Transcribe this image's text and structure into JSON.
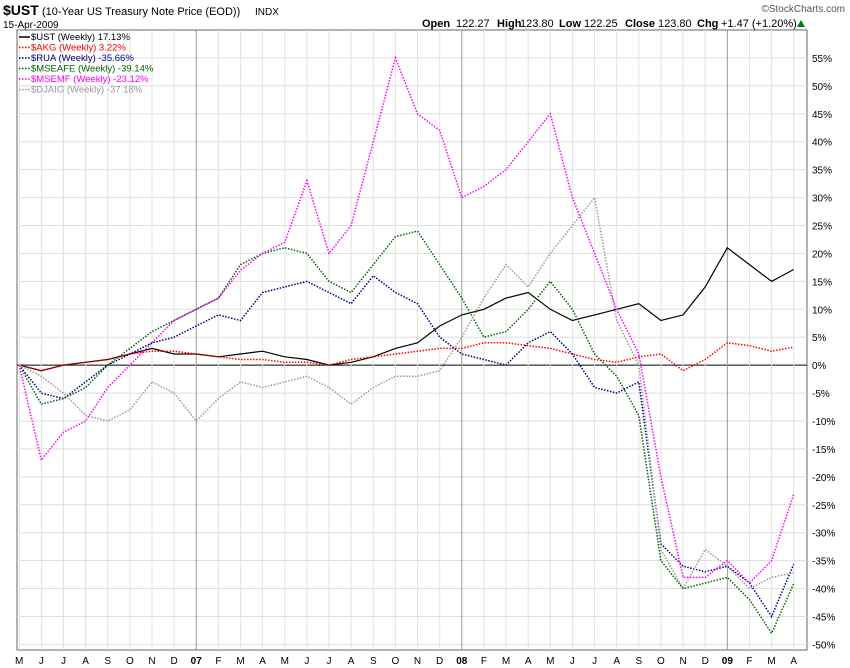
{
  "header": {
    "symbol": "$UST",
    "description": "(10-Year US Treasury Note Price (EOD))",
    "exchange": "INDX",
    "date": "15-Apr-2009",
    "watermark": "©StockCharts.com",
    "quote": {
      "open_label": "Open",
      "open": "122.27",
      "high_label": "High",
      "high": "123.80",
      "low_label": "Low",
      "low": "122.25",
      "close_label": "Close",
      "close": "123.80",
      "chg_label": "Chg",
      "chg": "+1.47 (+1.20%)"
    },
    "colors": {
      "up_arrow": "#008000"
    }
  },
  "chart_data": {
    "type": "line",
    "title": "$UST (10-Year US Treasury Note Price (EOD))",
    "xlabel": "",
    "ylabel": "",
    "ylim": [
      -51,
      60
    ],
    "yticks": [
      55,
      50,
      45,
      40,
      35,
      30,
      25,
      20,
      15,
      10,
      5,
      0,
      -5,
      -10,
      -15,
      -20,
      -25,
      -30,
      -35,
      -40,
      -45,
      -50
    ],
    "ytick_labels": [
      "55%",
      "50%",
      "45%",
      "40%",
      "35%",
      "30%",
      "25%",
      "20%",
      "15%",
      "10%",
      "5%",
      "0%",
      "-5%",
      "-10%",
      "-15%",
      "-20%",
      "-25%",
      "-30%",
      "-35%",
      "-40%",
      "-45%",
      "-50%"
    ],
    "x_labels": [
      "M",
      "J",
      "J",
      "A",
      "S",
      "O",
      "N",
      "D",
      "07",
      "F",
      "M",
      "A",
      "M",
      "J",
      "J",
      "A",
      "S",
      "O",
      "N",
      "D",
      "08",
      "F",
      "M",
      "A",
      "M",
      "J",
      "J",
      "A",
      "S",
      "O",
      "N",
      "D",
      "09",
      "F",
      "M",
      "A"
    ],
    "x_month_index": [
      0,
      1,
      2,
      3,
      4,
      5,
      6,
      7,
      8,
      9,
      10,
      11,
      12,
      13,
      14,
      15,
      16,
      17,
      18,
      19,
      20,
      21,
      22,
      23,
      24,
      25,
      26,
      27,
      28,
      29,
      30,
      31,
      32,
      33,
      34,
      35
    ],
    "x_range": [
      -0.1,
      35.6
    ],
    "grid": true,
    "legend_position": "top-left",
    "series": [
      {
        "name": "$UST (Weekly) 17.13%",
        "color": "#000000",
        "style": "solid",
        "values": [
          [
            0,
            0
          ],
          [
            1,
            -1
          ],
          [
            2,
            0
          ],
          [
            3,
            0.5
          ],
          [
            4,
            1
          ],
          [
            5,
            2
          ],
          [
            6,
            3
          ],
          [
            7,
            2
          ],
          [
            8,
            2
          ],
          [
            9,
            1.5
          ],
          [
            10,
            2
          ],
          [
            11,
            2.5
          ],
          [
            12,
            1.5
          ],
          [
            13,
            1
          ],
          [
            14,
            0
          ],
          [
            15,
            0.5
          ],
          [
            16,
            1.5
          ],
          [
            17,
            3
          ],
          [
            18,
            4
          ],
          [
            19,
            7
          ],
          [
            20,
            9
          ],
          [
            21,
            10
          ],
          [
            22,
            12
          ],
          [
            23,
            13
          ],
          [
            24,
            10
          ],
          [
            25,
            8
          ],
          [
            26,
            9
          ],
          [
            27,
            10
          ],
          [
            28,
            11
          ],
          [
            29,
            8
          ],
          [
            30,
            9
          ],
          [
            31,
            14
          ],
          [
            32,
            21
          ],
          [
            33,
            18
          ],
          [
            34,
            15
          ],
          [
            35,
            17.13
          ]
        ]
      },
      {
        "name": "$AKG (Weekly) 3.22%",
        "color": "#ff0000",
        "style": "dotted",
        "values": [
          [
            0,
            0
          ],
          [
            1,
            -1
          ],
          [
            2,
            0
          ],
          [
            3,
            0.5
          ],
          [
            4,
            1
          ],
          [
            5,
            2
          ],
          [
            6,
            2.5
          ],
          [
            7,
            2.5
          ],
          [
            8,
            2
          ],
          [
            9,
            1.5
          ],
          [
            10,
            1
          ],
          [
            11,
            1
          ],
          [
            12,
            0.5
          ],
          [
            13,
            0.5
          ],
          [
            14,
            0
          ],
          [
            15,
            1
          ],
          [
            16,
            1.5
          ],
          [
            17,
            2
          ],
          [
            18,
            2.5
          ],
          [
            19,
            3
          ],
          [
            20,
            3
          ],
          [
            21,
            4
          ],
          [
            22,
            4
          ],
          [
            23,
            3.5
          ],
          [
            24,
            3
          ],
          [
            25,
            2
          ],
          [
            26,
            1
          ],
          [
            27,
            0.5
          ],
          [
            28,
            1.5
          ],
          [
            29,
            2
          ],
          [
            30,
            -1
          ],
          [
            31,
            1
          ],
          [
            32,
            4
          ],
          [
            33,
            3.5
          ],
          [
            34,
            2.5
          ],
          [
            35,
            3.22
          ]
        ]
      },
      {
        "name": "$RUA (Weekly) -35.66%",
        "color": "#000080",
        "style": "dotted",
        "values": [
          [
            0,
            0
          ],
          [
            1,
            -5
          ],
          [
            2,
            -6
          ],
          [
            3,
            -3
          ],
          [
            4,
            0
          ],
          [
            5,
            2
          ],
          [
            6,
            4
          ],
          [
            7,
            5
          ],
          [
            8,
            7
          ],
          [
            9,
            9
          ],
          [
            10,
            8
          ],
          [
            11,
            13
          ],
          [
            12,
            14
          ],
          [
            13,
            15
          ],
          [
            14,
            13
          ],
          [
            15,
            11
          ],
          [
            16,
            16
          ],
          [
            17,
            13
          ],
          [
            18,
            11
          ],
          [
            19,
            5
          ],
          [
            20,
            2
          ],
          [
            21,
            1
          ],
          [
            22,
            0
          ],
          [
            23,
            4
          ],
          [
            24,
            6
          ],
          [
            25,
            2
          ],
          [
            26,
            -4
          ],
          [
            27,
            -5
          ],
          [
            28,
            -3
          ],
          [
            29,
            -32
          ],
          [
            30,
            -36
          ],
          [
            31,
            -37
          ],
          [
            32,
            -36
          ],
          [
            33,
            -39
          ],
          [
            34,
            -45
          ],
          [
            35,
            -35.66
          ]
        ]
      },
      {
        "name": "$MSEAFE (Weekly) -39.14%",
        "color": "#006400",
        "style": "dotted",
        "values": [
          [
            0,
            0
          ],
          [
            1,
            -7
          ],
          [
            2,
            -6
          ],
          [
            3,
            -4
          ],
          [
            4,
            0
          ],
          [
            5,
            3
          ],
          [
            6,
            6
          ],
          [
            7,
            8
          ],
          [
            8,
            10
          ],
          [
            9,
            12
          ],
          [
            10,
            18
          ],
          [
            11,
            20
          ],
          [
            12,
            21
          ],
          [
            13,
            20
          ],
          [
            14,
            15
          ],
          [
            15,
            13
          ],
          [
            16,
            18
          ],
          [
            17,
            23
          ],
          [
            18,
            24
          ],
          [
            19,
            18
          ],
          [
            20,
            12
          ],
          [
            21,
            5
          ],
          [
            22,
            6
          ],
          [
            23,
            10
          ],
          [
            24,
            15
          ],
          [
            25,
            10
          ],
          [
            26,
            2
          ],
          [
            27,
            -2
          ],
          [
            28,
            -9
          ],
          [
            29,
            -35
          ],
          [
            30,
            -40
          ],
          [
            31,
            -39
          ],
          [
            32,
            -38
          ],
          [
            33,
            -42
          ],
          [
            34,
            -48
          ],
          [
            35,
            -39.14
          ]
        ]
      },
      {
        "name": "$MSEMF (Weekly) -23.12%",
        "color": "#ff00ff",
        "style": "dotted",
        "values": [
          [
            0,
            0
          ],
          [
            1,
            -17
          ],
          [
            2,
            -12
          ],
          [
            3,
            -10
          ],
          [
            4,
            -4
          ],
          [
            5,
            0
          ],
          [
            6,
            4
          ],
          [
            7,
            8
          ],
          [
            8,
            10
          ],
          [
            9,
            12
          ],
          [
            10,
            17
          ],
          [
            11,
            20
          ],
          [
            12,
            22
          ],
          [
            13,
            33
          ],
          [
            14,
            20
          ],
          [
            15,
            25
          ],
          [
            16,
            40
          ],
          [
            17,
            55
          ],
          [
            18,
            45
          ],
          [
            19,
            42
          ],
          [
            20,
            30
          ],
          [
            21,
            32
          ],
          [
            22,
            35
          ],
          [
            23,
            40
          ],
          [
            24,
            45
          ],
          [
            25,
            30
          ],
          [
            26,
            20
          ],
          [
            27,
            10
          ],
          [
            28,
            2
          ],
          [
            29,
            -20
          ],
          [
            30,
            -38
          ],
          [
            31,
            -38
          ],
          [
            32,
            -35
          ],
          [
            33,
            -39
          ],
          [
            34,
            -35
          ],
          [
            35,
            -23.12
          ]
        ]
      },
      {
        "name": "$DJAIG (Weekly) -37.18%",
        "color": "#999999",
        "style": "dotted",
        "values": [
          [
            0,
            0
          ],
          [
            1,
            -2
          ],
          [
            2,
            -5
          ],
          [
            3,
            -9
          ],
          [
            4,
            -10
          ],
          [
            5,
            -8
          ],
          [
            6,
            -3
          ],
          [
            7,
            -5
          ],
          [
            8,
            -10
          ],
          [
            9,
            -6
          ],
          [
            10,
            -3
          ],
          [
            11,
            -4
          ],
          [
            12,
            -3
          ],
          [
            13,
            -2
          ],
          [
            14,
            -4
          ],
          [
            15,
            -7
          ],
          [
            16,
            -4
          ],
          [
            17,
            -2
          ],
          [
            18,
            -2
          ],
          [
            19,
            -1
          ],
          [
            20,
            5
          ],
          [
            21,
            12
          ],
          [
            22,
            18
          ],
          [
            23,
            14
          ],
          [
            24,
            20
          ],
          [
            25,
            25
          ],
          [
            26,
            30
          ],
          [
            27,
            8
          ],
          [
            28,
            0
          ],
          [
            29,
            -33
          ],
          [
            30,
            -40
          ],
          [
            31,
            -33
          ],
          [
            32,
            -36
          ],
          [
            33,
            -40
          ],
          [
            34,
            -38
          ],
          [
            35,
            -37.18
          ]
        ]
      }
    ]
  }
}
